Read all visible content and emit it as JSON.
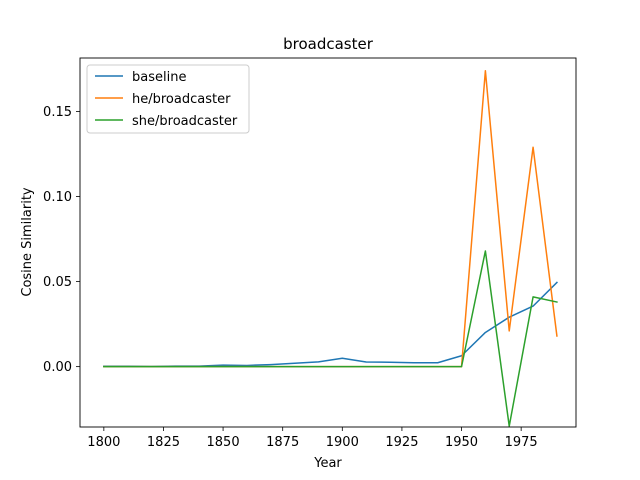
{
  "chart_data": {
    "type": "line",
    "title": "broadcaster",
    "xlabel": "Year",
    "ylabel": "Cosine Similarity",
    "xlim": [
      1790,
      1998
    ],
    "ylim": [
      -0.0355,
      0.1815
    ],
    "xticks": [
      1800,
      1825,
      1850,
      1875,
      1900,
      1925,
      1950,
      1975
    ],
    "xtick_labels": [
      "1800",
      "1825",
      "1850",
      "1875",
      "1900",
      "1925",
      "1950",
      "1975"
    ],
    "yticks": [
      0.0,
      0.05,
      0.1,
      0.15
    ],
    "ytick_labels": [
      "0.00",
      "0.05",
      "0.10",
      "0.15"
    ],
    "grid": false,
    "legend_position": "top-left",
    "x": [
      1800,
      1810,
      1820,
      1830,
      1840,
      1850,
      1860,
      1870,
      1880,
      1890,
      1900,
      1910,
      1920,
      1930,
      1940,
      1950,
      1960,
      1970,
      1980,
      1990
    ],
    "series": [
      {
        "name": "baseline",
        "color": "#1f77b4",
        "values": [
          0.0002,
          0.0002,
          0.0001,
          0.0003,
          0.0003,
          0.0009,
          0.0007,
          0.0012,
          0.002,
          0.0028,
          0.0049,
          0.0027,
          0.0026,
          0.0023,
          0.0023,
          0.0064,
          0.0201,
          0.0291,
          0.0356,
          0.0495
        ]
      },
      {
        "name": "he/broadcaster",
        "color": "#ff7f0e",
        "values": [
          0,
          0,
          0,
          0,
          0,
          0,
          0,
          0,
          0,
          0,
          0,
          0,
          0,
          0,
          0,
          0,
          0.174,
          0.021,
          0.129,
          0.018
        ]
      },
      {
        "name": "she/broadcaster",
        "color": "#2ca02c",
        "values": [
          0,
          0,
          0,
          0,
          0,
          0,
          0,
          0,
          0,
          0,
          0,
          0,
          0,
          0,
          0,
          0,
          0.068,
          -0.035,
          0.041,
          0.038
        ]
      }
    ]
  }
}
